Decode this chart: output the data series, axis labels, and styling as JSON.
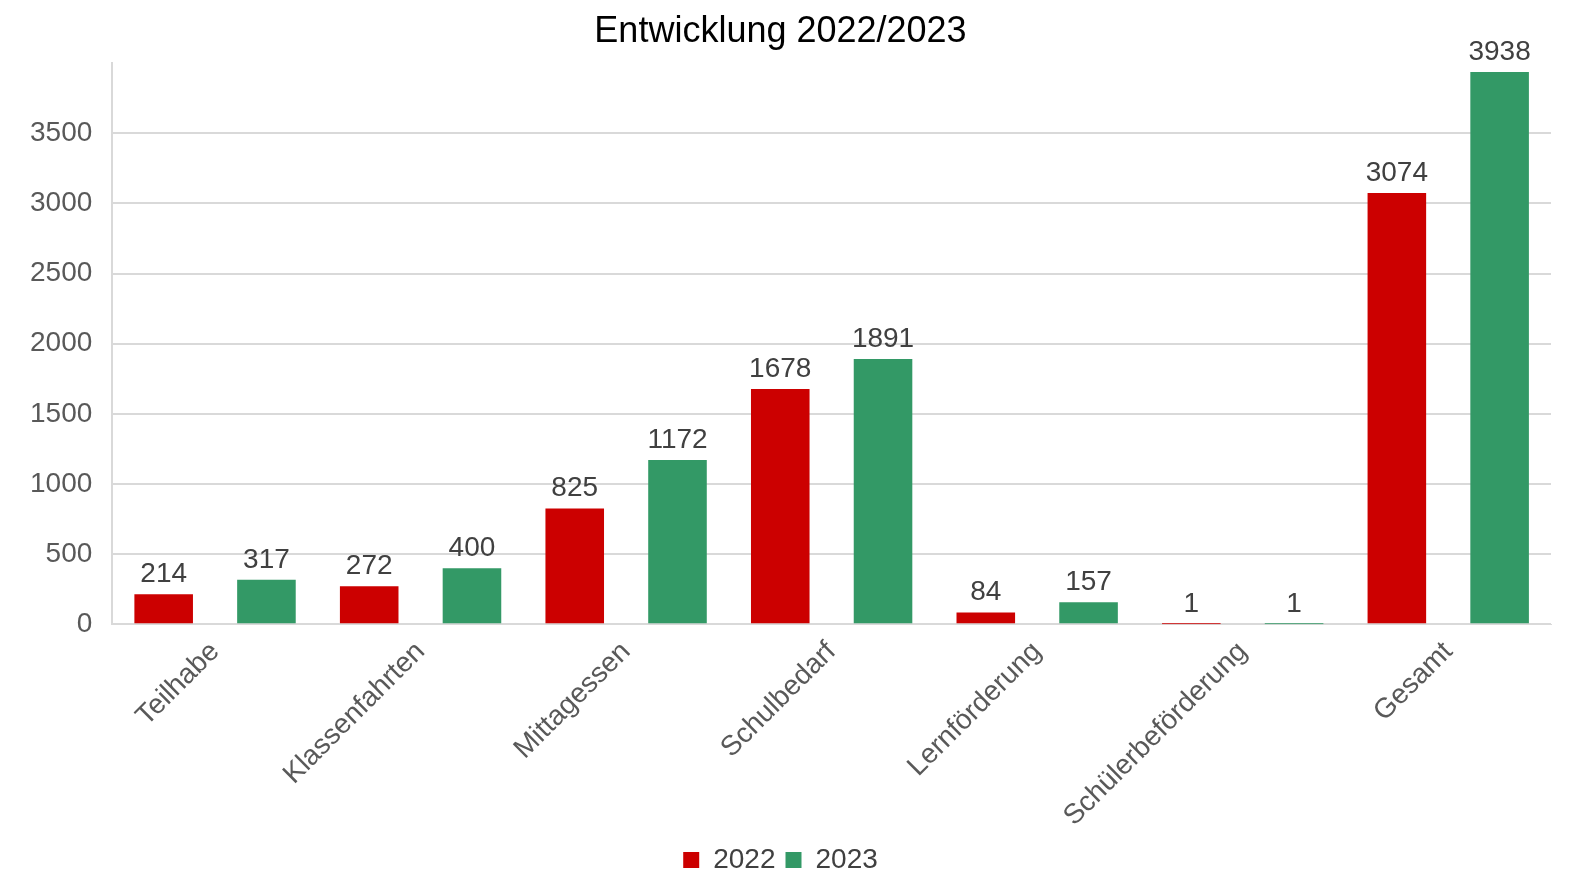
{
  "chart_data": {
    "type": "bar",
    "title": "Entwicklung 2022/2023",
    "categories": [
      "Teilhabe",
      "Klassenfahrten",
      "Mittagessen",
      "Schulbedarf",
      "Lernförderung",
      "Schülerbeförderung",
      "Gesamt"
    ],
    "series": [
      {
        "name": "2022",
        "color": "#cc0000",
        "values": [
          214,
          272,
          825,
          1678,
          84,
          1,
          3074
        ]
      },
      {
        "name": "2023",
        "color": "#339966",
        "values": [
          317,
          400,
          1172,
          1891,
          157,
          1,
          3938
        ]
      }
    ],
    "ylim": [
      0,
      4000
    ],
    "yticks": [
      0,
      500,
      1000,
      1500,
      2000,
      2500,
      3000,
      3500
    ],
    "grid": "y",
    "legend": "bottom",
    "data_labels": true
  }
}
